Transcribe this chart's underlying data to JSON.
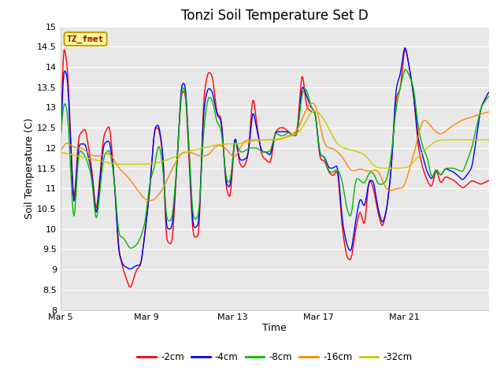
{
  "title": "Tonzi Soil Temperature Set D",
  "xlabel": "Time",
  "ylabel": "Soil Temperature (C)",
  "ylim": [
    8.0,
    15.0
  ],
  "yticks": [
    8.0,
    8.5,
    9.0,
    9.5,
    10.0,
    10.5,
    11.0,
    11.5,
    12.0,
    12.5,
    13.0,
    13.5,
    14.0,
    14.5,
    15.0
  ],
  "xtick_labels": [
    "Mar 5",
    "Mar 9",
    "Mar 13",
    "Mar 17",
    "Mar 21"
  ],
  "xtick_positions": [
    0,
    96,
    192,
    288,
    384
  ],
  "n_points": 480,
  "series_colors": [
    "#ff0000",
    "#0000ff",
    "#00bb00",
    "#ff8800",
    "#cccc00"
  ],
  "series_labels": [
    "-2cm",
    "-4cm",
    "-8cm",
    "-16cm",
    "-32cm"
  ],
  "legend_box_color": "#ffff99",
  "legend_box_edge": "#cc9900",
  "annotation_text": "TZ_fmet",
  "annotation_color": "#990000",
  "bg_color": "#e8e8e8",
  "grid_color": "#ffffff",
  "title_fontsize": 12,
  "label_fontsize": 9,
  "tick_fontsize": 8
}
